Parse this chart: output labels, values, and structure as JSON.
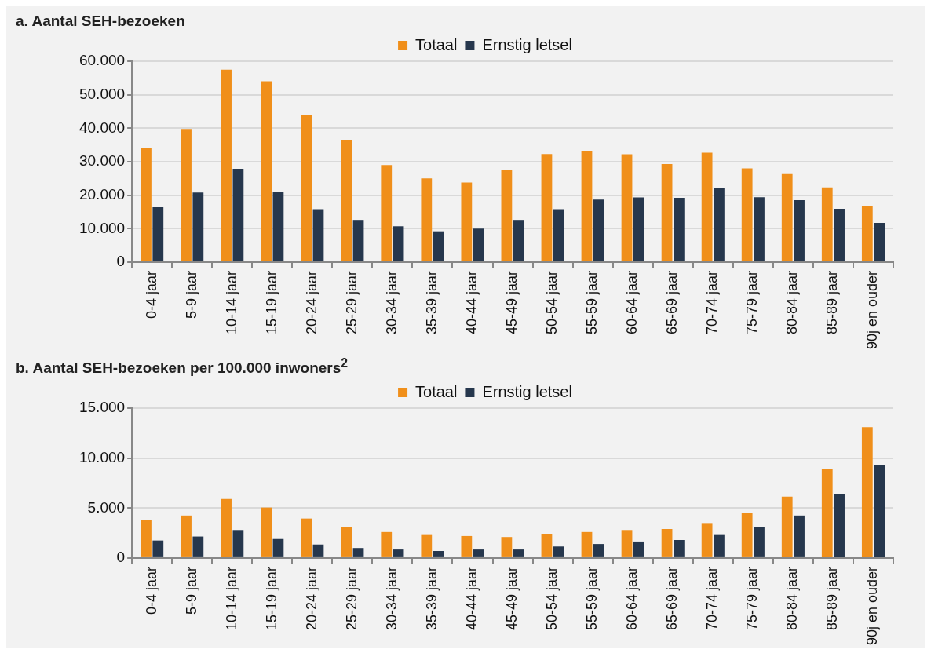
{
  "chart_data": [
    {
      "type": "bar",
      "title": "a. Aantal SEH-bezoeken",
      "categories": [
        "0-4 jaar",
        "5-9 jaar",
        "10-14 jaar",
        "15-19 jaar",
        "20-24 jaar",
        "25-29 jaar",
        "30-34 jaar",
        "35-39 jaar",
        "40-44 jaar",
        "45-49 jaar",
        "50-54 jaar",
        "55-59 jaar",
        "60-64 jaar",
        "65-69 jaar",
        "70-74 jaar",
        "75-79 jaar",
        "80-84 jaar",
        "85-89 jaar",
        "90j en ouder"
      ],
      "series": [
        {
          "name": "Totaal",
          "color": "#f08f1a",
          "values": [
            34000,
            39800,
            57500,
            54000,
            44000,
            36500,
            29000,
            25000,
            23800,
            27500,
            32300,
            33200,
            32200,
            29300,
            32700,
            28000,
            26300,
            22300,
            16600
          ]
        },
        {
          "name": "Ernstig letsel",
          "color": "#26374d",
          "values": [
            16400,
            20800,
            27900,
            21100,
            15800,
            12600,
            10700,
            9200,
            10000,
            12600,
            15800,
            18700,
            19300,
            19200,
            22000,
            19400,
            18500,
            15900,
            11700
          ]
        }
      ],
      "ylim": [
        0,
        60000
      ],
      "yticks": [
        {
          "value": 0,
          "label": "0"
        },
        {
          "value": 10000,
          "label": "10.000"
        },
        {
          "value": 20000,
          "label": "20.000"
        },
        {
          "value": 30000,
          "label": "30.000"
        },
        {
          "value": 40000,
          "label": "40.000"
        },
        {
          "value": 50000,
          "label": "50.000"
        },
        {
          "value": 60000,
          "label": "60.000"
        }
      ],
      "grid": "y",
      "legend": "top"
    },
    {
      "type": "bar",
      "title": "b. Aantal SEH-bezoeken per 100.000 inwoners$^{2}$",
      "categories": [
        "0-4 jaar",
        "5-9 jaar",
        "10-14 jaar",
        "15-19 jaar",
        "20-24 jaar",
        "25-29 jaar",
        "30-34 jaar",
        "35-39 jaar",
        "40-44 jaar",
        "45-49 jaar",
        "50-54 jaar",
        "55-59 jaar",
        "60-64 jaar",
        "65-69 jaar",
        "70-74 jaar",
        "75-79 jaar",
        "80-84 jaar",
        "85-89 jaar",
        "90j en ouder"
      ],
      "series": [
        {
          "name": "Totaal",
          "color": "#f08f1a",
          "values": [
            3800,
            4250,
            5900,
            5050,
            3950,
            3100,
            2600,
            2300,
            2200,
            2100,
            2400,
            2600,
            2800,
            2900,
            3500,
            4550,
            6150,
            8950,
            13100
          ]
        },
        {
          "name": "Ernstig letsel",
          "color": "#26374d",
          "values": [
            1750,
            2150,
            2800,
            1900,
            1350,
            1000,
            850,
            700,
            850,
            850,
            1150,
            1400,
            1650,
            1800,
            2300,
            3100,
            4250,
            6350,
            9350
          ]
        }
      ],
      "ylim": [
        0,
        15000
      ],
      "yticks": [
        {
          "value": 0,
          "label": "0"
        },
        {
          "value": 5000,
          "label": "5.000"
        },
        {
          "value": 10000,
          "label": "10.000"
        },
        {
          "value": 15000,
          "label": "15.000"
        }
      ],
      "grid": "y",
      "legend": "top"
    }
  ]
}
